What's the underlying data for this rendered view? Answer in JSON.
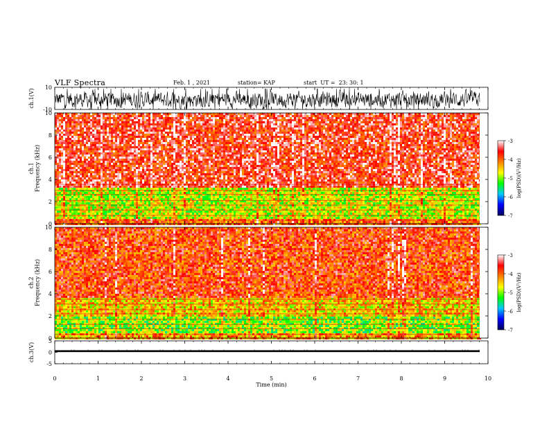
{
  "header": {
    "title": "VLF Spectra",
    "date": "Feb. 1 , 2021",
    "station": "station= KAP",
    "start": "start  UT =  23: 30: 1"
  },
  "chart_data": [
    {
      "type": "line",
      "ylabel": "ch.1(V)",
      "ylim": [
        -10,
        10
      ],
      "yticks": [
        "10",
        "-10"
      ],
      "xlim": [
        0,
        10
      ],
      "description_values": "noisy waveform oscillating roughly between -8 and 8 V"
    },
    {
      "type": "heatmap",
      "ylabel": "ch.1\nFrequency (kHz)",
      "ylim": [
        0,
        10
      ],
      "yticks": [
        "0",
        "2",
        "4",
        "6",
        "8",
        "10"
      ],
      "xlim": [
        0,
        9.8
      ],
      "colorbar": {
        "label": "log(PSD)(V²/Hz)",
        "ticks": [
          "-3",
          "-4",
          "-5",
          "-6",
          "-7"
        ],
        "range": [
          -7,
          -3
        ]
      },
      "bands": [
        {
          "from_khz": 0,
          "to_khz": 0.5,
          "level": -4.0
        },
        {
          "from_khz": 0.5,
          "to_khz": 3.3,
          "level": -4.8
        },
        {
          "from_khz": 3.3,
          "to_khz": 10,
          "level": -3.6
        }
      ]
    },
    {
      "type": "heatmap",
      "ylabel": "ch.2\nFrequency (kHz)",
      "ylim": [
        0,
        10
      ],
      "yticks": [
        "0",
        "2",
        "4",
        "6",
        "8",
        "10"
      ],
      "xlim": [
        0,
        9.8
      ],
      "colorbar": {
        "label": "log(PSD)(V²/Hz)",
        "ticks": [
          "-3",
          "-4",
          "-5",
          "-6",
          "-7"
        ],
        "range": [
          -7,
          -3
        ]
      },
      "bands": [
        {
          "from_khz": 0,
          "to_khz": 0.5,
          "level": -4.3
        },
        {
          "from_khz": 0.5,
          "to_khz": 2.0,
          "level": -5.0
        },
        {
          "from_khz": 2.0,
          "to_khz": 3.8,
          "level": -4.5
        },
        {
          "from_khz": 3.8,
          "to_khz": 10,
          "level": -3.8
        }
      ]
    },
    {
      "type": "line",
      "ylabel": "ch.3(V)",
      "ylim": [
        -5,
        5
      ],
      "yticks": [
        "5",
        "0",
        "-5"
      ],
      "xlim": [
        0,
        10
      ],
      "description_values": "nearly constant thick trace at about 0.5 V"
    }
  ],
  "xaxis": {
    "label": "Time (min)",
    "ticks": [
      "0",
      "1",
      "2",
      "3",
      "4",
      "5",
      "6",
      "7",
      "8",
      "9",
      "10"
    ],
    "range": [
      0,
      10
    ]
  },
  "colors": {
    "colormap": [
      "#00005a",
      "#0000ff",
      "#00c8ff",
      "#00ff00",
      "#ffff00",
      "#ff8000",
      "#ff0000",
      "#ffffff"
    ]
  }
}
